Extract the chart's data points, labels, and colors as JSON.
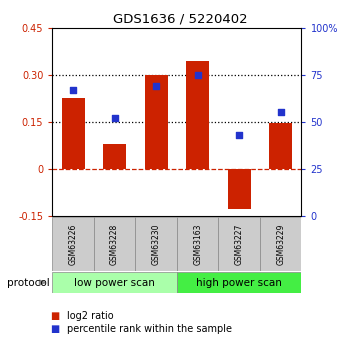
{
  "title": "GDS1636 / 5220402",
  "categories": [
    "GSM63226",
    "GSM63228",
    "GSM63230",
    "GSM63163",
    "GSM63227",
    "GSM63229"
  ],
  "log2_ratio": [
    0.225,
    0.08,
    0.3,
    0.345,
    -0.13,
    0.145
  ],
  "percentile_rank": [
    67,
    52,
    69,
    75,
    43,
    55
  ],
  "bar_color": "#cc2200",
  "dot_color": "#2233cc",
  "ylim_left": [
    -0.15,
    0.45
  ],
  "ylim_right": [
    0,
    100
  ],
  "yticks_left": [
    -0.15,
    0.0,
    0.15,
    0.3,
    0.45
  ],
  "ytick_labels_left": [
    "-0.15",
    "0",
    "0.15",
    "0.30",
    "0.45"
  ],
  "yticks_right": [
    0,
    25,
    50,
    75,
    100
  ],
  "ytick_labels_right": [
    "0",
    "25",
    "50",
    "75",
    "100%"
  ],
  "protocol_labels": [
    "low power scan",
    "high power scan"
  ],
  "protocol_colors": [
    "#aaffaa",
    "#44ee44"
  ],
  "legend_items": [
    "log2 ratio",
    "percentile rank within the sample"
  ],
  "legend_colors": [
    "#cc2200",
    "#2233cc"
  ],
  "bar_width": 0.55
}
